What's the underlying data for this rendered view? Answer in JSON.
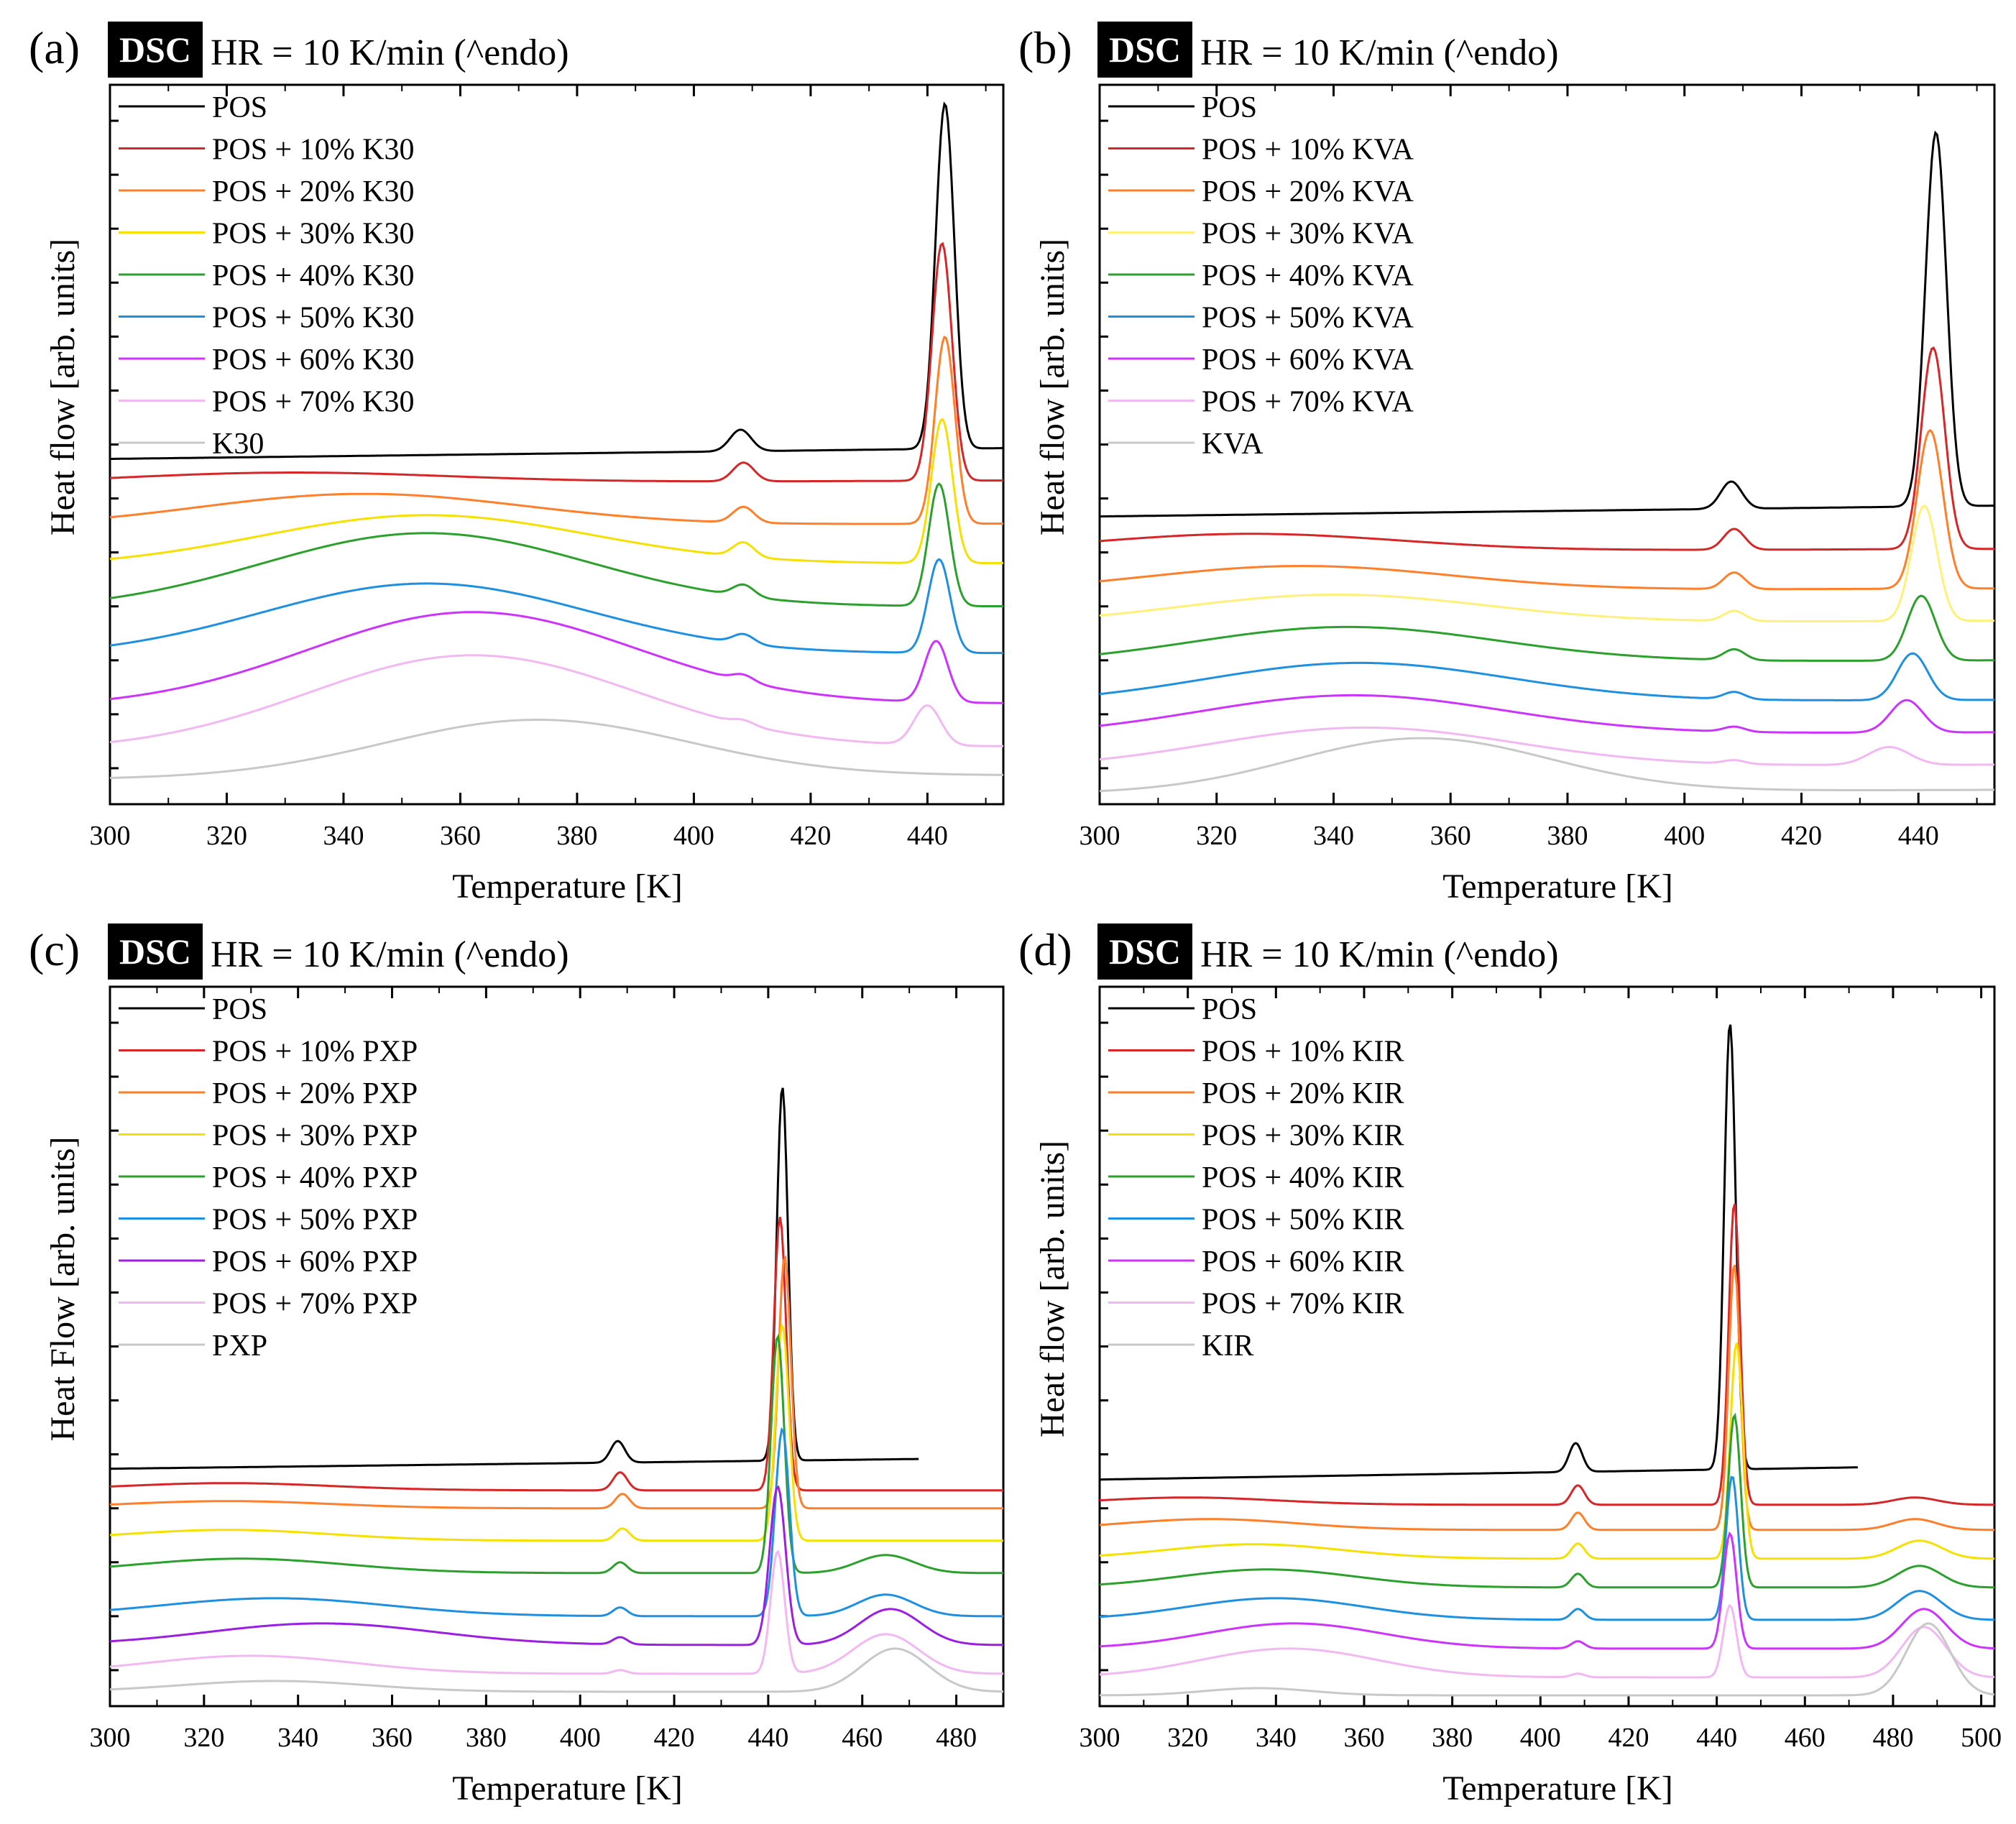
{
  "figure": {
    "hr_text": "HR = 10 K/min (^endo)",
    "badge_text": "DSC"
  },
  "chart_data": [
    {
      "type": "line",
      "panel_label": "(a)",
      "badge": "DSC",
      "title": "HR = 10 K/min (^endo)",
      "xlabel": "Temperature [K]",
      "ylabel": "Heat flow [arb. units]",
      "xlim": [
        300,
        453
      ],
      "xticks": [
        300,
        320,
        340,
        360,
        380,
        400,
        420,
        440
      ],
      "ylim": [
        0,
        100
      ],
      "grid": false,
      "legend_position": "top-left",
      "series": [
        {
          "name": "POS",
          "color": "#000000",
          "baseline": 48.0,
          "hump": {
            "c": 345,
            "w": 40,
            "a": 0.0
          },
          "peaks": [
            {
              "c": 408,
              "w": 1.8,
              "a": 3.0
            },
            {
              "c": 443,
              "w": 1.6,
              "a": 48.0
            }
          ],
          "trend": 1.5
        },
        {
          "name": "POS + 10% K30",
          "color": "#d62728",
          "baseline": 44.5,
          "hump": {
            "c": 330,
            "w": 28,
            "a": 1.5
          },
          "peaks": [
            {
              "c": 408.5,
              "w": 1.8,
              "a": 2.6
            },
            {
              "c": 442.5,
              "w": 1.7,
              "a": 33.0
            }
          ],
          "trend": 0.5
        },
        {
          "name": "POS + 20% K30",
          "color": "#ff7f2a",
          "baseline": 38.5,
          "hump": {
            "c": 343,
            "w": 28,
            "a": 4.5
          },
          "peaks": [
            {
              "c": 408.5,
              "w": 1.8,
              "a": 2.2
            },
            {
              "c": 443,
              "w": 1.7,
              "a": 26.0
            }
          ],
          "trend": 0.5
        },
        {
          "name": "POS + 30% K30",
          "color": "#f5e000",
          "baseline": 33.0,
          "hump": {
            "c": 354,
            "w": 28,
            "a": 7.0
          },
          "peaks": [
            {
              "c": 408.5,
              "w": 1.8,
              "a": 2.0
            },
            {
              "c": 442.5,
              "w": 1.8,
              "a": 20.0
            }
          ],
          "trend": 0.5
        },
        {
          "name": "POS + 40% K30",
          "color": "#2ca02c",
          "baseline": 27.0,
          "hump": {
            "c": 354,
            "w": 28,
            "a": 10.5
          },
          "peaks": [
            {
              "c": 408.5,
              "w": 1.8,
              "a": 1.6
            },
            {
              "c": 442,
              "w": 1.8,
              "a": 17.0
            }
          ],
          "trend": 0.5
        },
        {
          "name": "POS + 50% K30",
          "color": "#1f8fe0",
          "baseline": 20.5,
          "hump": {
            "c": 354,
            "w": 28,
            "a": 10.0
          },
          "peaks": [
            {
              "c": 408.5,
              "w": 1.8,
              "a": 1.3
            },
            {
              "c": 442,
              "w": 1.9,
              "a": 13.0
            }
          ],
          "trend": 0.5
        },
        {
          "name": "POS + 60% K30",
          "color": "#cc33ff",
          "baseline": 13.5,
          "hump": {
            "c": 362,
            "w": 28,
            "a": 13.0
          },
          "peaks": [
            {
              "c": 408.5,
              "w": 1.8,
              "a": 0.9
            },
            {
              "c": 441.5,
              "w": 2.0,
              "a": 8.5
            }
          ],
          "trend": 0.5
        },
        {
          "name": "POS + 70% K30",
          "color": "#f2b8f2",
          "baseline": 7.5,
          "hump": {
            "c": 362,
            "w": 28,
            "a": 13.0
          },
          "peaks": [
            {
              "c": 408.5,
              "w": 1.8,
              "a": 0.6
            },
            {
              "c": 440,
              "w": 2.3,
              "a": 5.5
            }
          ],
          "trend": 0.5
        },
        {
          "name": "K30",
          "color": "#c8c8c8",
          "baseline": 3.5,
          "hump": {
            "c": 373,
            "w": 26,
            "a": 8.0
          },
          "peaks": [],
          "trend": 0.5
        }
      ]
    },
    {
      "type": "line",
      "panel_label": "(b)",
      "badge": "DSC",
      "title": "HR = 10 K/min (^endo)",
      "xlabel": "Temperature [K]",
      "ylabel": "Heat flow [arb. units]",
      "xlim": [
        300,
        453
      ],
      "xticks": [
        300,
        320,
        340,
        360,
        380,
        400,
        420,
        440
      ],
      "ylim": [
        0,
        100
      ],
      "grid": false,
      "legend_position": "top-left",
      "series": [
        {
          "name": "POS",
          "color": "#000000",
          "baseline": 40.0,
          "hump": {
            "c": 340,
            "w": 40,
            "a": 0.0
          },
          "peaks": [
            {
              "c": 408,
              "w": 1.8,
              "a": 3.8
            },
            {
              "c": 443,
              "w": 1.8,
              "a": 52.0
            }
          ],
          "trend": 1.5
        },
        {
          "name": "POS + 10% KVA",
          "color": "#d62728",
          "baseline": 35.0,
          "hump": {
            "c": 325,
            "w": 26,
            "a": 2.5
          },
          "peaks": [
            {
              "c": 408.5,
              "w": 1.8,
              "a": 2.9
            },
            {
              "c": 442.5,
              "w": 2.0,
              "a": 28.0
            }
          ],
          "trend": 0.5
        },
        {
          "name": "POS + 20% KVA",
          "color": "#ff7f2a",
          "baseline": 29.5,
          "hump": {
            "c": 334,
            "w": 26,
            "a": 3.5
          },
          "peaks": [
            {
              "c": 408.5,
              "w": 1.8,
              "a": 2.3
            },
            {
              "c": 442,
              "w": 2.2,
              "a": 22.0
            }
          ],
          "trend": 0.5
        },
        {
          "name": "POS + 30% KVA",
          "color": "#fff07a",
          "baseline": 25.0,
          "hump": {
            "c": 340,
            "w": 26,
            "a": 4.0
          },
          "peaks": [
            {
              "c": 408.5,
              "w": 1.8,
              "a": 1.4
            },
            {
              "c": 441,
              "w": 2.2,
              "a": 16.0
            }
          ],
          "trend": 0.5
        },
        {
          "name": "POS + 40% KVA",
          "color": "#2ca02c",
          "baseline": 19.5,
          "hump": {
            "c": 342,
            "w": 26,
            "a": 5.0
          },
          "peaks": [
            {
              "c": 408.5,
              "w": 1.8,
              "a": 1.5
            },
            {
              "c": 440.5,
              "w": 2.4,
              "a": 9.0
            }
          ],
          "trend": 0.5
        },
        {
          "name": "POS + 50% KVA",
          "color": "#1f8fe0",
          "baseline": 14.0,
          "hump": {
            "c": 344,
            "w": 26,
            "a": 5.5
          },
          "peaks": [
            {
              "c": 408.5,
              "w": 1.8,
              "a": 1.0
            },
            {
              "c": 439,
              "w": 2.6,
              "a": 6.5
            }
          ],
          "trend": 0.5
        },
        {
          "name": "POS + 60% KVA",
          "color": "#cc33ff",
          "baseline": 9.5,
          "hump": {
            "c": 343,
            "w": 26,
            "a": 5.5
          },
          "peaks": [
            {
              "c": 408.5,
              "w": 1.8,
              "a": 0.7
            },
            {
              "c": 438,
              "w": 2.8,
              "a": 4.5
            }
          ],
          "trend": 0.5
        },
        {
          "name": "POS + 70% KVA",
          "color": "#f2b8f2",
          "baseline": 5.0,
          "hump": {
            "c": 345,
            "w": 26,
            "a": 5.5
          },
          "peaks": [
            {
              "c": 408.5,
              "w": 1.8,
              "a": 0.5
            },
            {
              "c": 435,
              "w": 3.5,
              "a": 2.5
            }
          ],
          "trend": 0.5
        },
        {
          "name": "KVA",
          "color": "#c8c8c8",
          "baseline": 1.5,
          "hump": {
            "c": 355,
            "w": 22,
            "a": 7.5
          },
          "peaks": [],
          "trend": 0.5
        }
      ]
    },
    {
      "type": "line",
      "panel_label": "(c)",
      "badge": "DSC",
      "title": "HR = 10 K/min (^endo)",
      "xlabel": "Temperature [K]",
      "ylabel": "Heat Flow [arb. units]",
      "xlim": [
        300,
        490
      ],
      "xticks": [
        300,
        320,
        340,
        360,
        380,
        400,
        420,
        440,
        460,
        480
      ],
      "ylim": [
        0,
        100
      ],
      "grid": false,
      "legend_position": "top-left",
      "series": [
        {
          "name": "POS",
          "color": "#000000",
          "baseline": 33.0,
          "hump": {
            "c": 340,
            "w": 40,
            "a": 0.0
          },
          "peaks": [
            {
              "c": 408,
              "w": 1.5,
              "a": 3.0
            },
            {
              "c": 443,
              "w": 1.2,
              "a": 52.0
            }
          ],
          "trend": 1.5,
          "xend": 472
        },
        {
          "name": "POS + 10% PXP",
          "color": "#d62728",
          "baseline": 30.0,
          "hump": {
            "c": 325,
            "w": 22,
            "a": 1.0
          },
          "peaks": [
            {
              "c": 408.5,
              "w": 1.5,
              "a": 2.5
            },
            {
              "c": 442.5,
              "w": 1.3,
              "a": 38.0
            }
          ],
          "trend": 0.0
        },
        {
          "name": "POS + 20% PXP",
          "color": "#ff7f2a",
          "baseline": 27.5,
          "hump": {
            "c": 325,
            "w": 22,
            "a": 1.0
          },
          "peaks": [
            {
              "c": 409,
              "w": 1.5,
              "a": 2.0
            },
            {
              "c": 443.5,
              "w": 1.3,
              "a": 35.0
            }
          ],
          "trend": 0.0
        },
        {
          "name": "POS + 30% PXP",
          "color": "#f5e000",
          "baseline": 23.0,
          "hump": {
            "c": 325,
            "w": 22,
            "a": 1.5
          },
          "peaks": [
            {
              "c": 409,
              "w": 1.5,
              "a": 1.7
            },
            {
              "c": 443,
              "w": 1.4,
              "a": 30.0
            }
          ],
          "trend": 0.0
        },
        {
          "name": "POS + 40% PXP",
          "color": "#2ca02c",
          "baseline": 18.5,
          "hump": {
            "c": 328,
            "w": 22,
            "a": 2.0
          },
          "peaks": [
            {
              "c": 408.5,
              "w": 1.5,
              "a": 1.5
            },
            {
              "c": 442,
              "w": 1.4,
              "a": 33.0
            },
            {
              "c": 465,
              "w": 6.0,
              "a": 2.5
            }
          ],
          "trend": 0.0
        },
        {
          "name": "POS + 50% PXP",
          "color": "#1f8fe0",
          "baseline": 12.5,
          "hump": {
            "c": 335,
            "w": 24,
            "a": 2.5
          },
          "peaks": [
            {
              "c": 408.5,
              "w": 1.5,
              "a": 1.2
            },
            {
              "c": 443,
              "w": 1.5,
              "a": 26.0
            },
            {
              "c": 465,
              "w": 6.0,
              "a": 3.0
            }
          ],
          "trend": 0.0
        },
        {
          "name": "POS + 60% PXP",
          "color": "#9a1fe0",
          "baseline": 8.5,
          "hump": {
            "c": 345,
            "w": 24,
            "a": 3.0
          },
          "peaks": [
            {
              "c": 408.5,
              "w": 1.5,
              "a": 1.0
            },
            {
              "c": 442,
              "w": 1.7,
              "a": 22.0
            },
            {
              "c": 466,
              "w": 6.5,
              "a": 5.0
            }
          ],
          "trend": 0.0
        },
        {
          "name": "POS + 70% PXP",
          "color": "#f2b8f2",
          "baseline": 4.5,
          "hump": {
            "c": 330,
            "w": 22,
            "a": 2.5
          },
          "peaks": [
            {
              "c": 408.5,
              "w": 1.5,
              "a": 0.5
            },
            {
              "c": 442,
              "w": 1.5,
              "a": 17.0
            },
            {
              "c": 465,
              "w": 7.0,
              "a": 5.5
            }
          ],
          "trend": 0.0
        },
        {
          "name": "PXP",
          "color": "#c8c8c8",
          "baseline": 2.0,
          "hump": {
            "c": 335,
            "w": 20,
            "a": 1.5
          },
          "peaks": [
            {
              "c": 467,
              "w": 7.0,
              "a": 6.0
            }
          ],
          "trend": 0.0
        }
      ]
    },
    {
      "type": "line",
      "panel_label": "(d)",
      "badge": "DSC",
      "title": "HR = 10 K/min (^endo)",
      "xlabel": "Temperature [K]",
      "ylabel": "Heat flow [arb. units]",
      "xlim": [
        300,
        503
      ],
      "xticks": [
        300,
        320,
        340,
        360,
        380,
        400,
        420,
        440,
        460,
        480,
        500
      ],
      "ylim": [
        0,
        100
      ],
      "grid": false,
      "legend_position": "top-left",
      "series": [
        {
          "name": "POS",
          "color": "#000000",
          "baseline": 31.5,
          "hump": {
            "c": 340,
            "w": 40,
            "a": 0.0
          },
          "peaks": [
            {
              "c": 408,
              "w": 1.5,
              "a": 4.0
            },
            {
              "c": 443,
              "w": 1.3,
              "a": 62.0
            }
          ],
          "trend": 2.0,
          "xend": 472
        },
        {
          "name": "POS + 10% KIR",
          "color": "#d62728",
          "baseline": 28.0,
          "hump": {
            "c": 320,
            "w": 20,
            "a": 1.0
          },
          "peaks": [
            {
              "c": 408.5,
              "w": 1.5,
              "a": 2.7
            },
            {
              "c": 444,
              "w": 1.3,
              "a": 42.0
            },
            {
              "c": 485,
              "w": 5.0,
              "a": 1.0
            }
          ],
          "trend": 0.0
        },
        {
          "name": "POS + 20% KIR",
          "color": "#ff7f2a",
          "baseline": 24.5,
          "hump": {
            "c": 325,
            "w": 20,
            "a": 1.5
          },
          "peaks": [
            {
              "c": 408.5,
              "w": 1.5,
              "a": 2.4
            },
            {
              "c": 444,
              "w": 1.3,
              "a": 37.0
            },
            {
              "c": 485,
              "w": 5.0,
              "a": 1.5
            }
          ],
          "trend": 0.0
        },
        {
          "name": "POS + 30% KIR",
          "color": "#f5e000",
          "baseline": 20.5,
          "hump": {
            "c": 335,
            "w": 20,
            "a": 2.0
          },
          "peaks": [
            {
              "c": 408.5,
              "w": 1.5,
              "a": 2.1
            },
            {
              "c": 444.5,
              "w": 1.4,
              "a": 30.0
            },
            {
              "c": 486,
              "w": 5.0,
              "a": 2.5
            }
          ],
          "trend": 0.0
        },
        {
          "name": "POS + 40% KIR",
          "color": "#2ca02c",
          "baseline": 16.5,
          "hump": {
            "c": 338,
            "w": 20,
            "a": 2.5
          },
          "peaks": [
            {
              "c": 408.5,
              "w": 1.5,
              "a": 1.9
            },
            {
              "c": 444,
              "w": 1.4,
              "a": 24.0
            },
            {
              "c": 486,
              "w": 5.0,
              "a": 3.0
            }
          ],
          "trend": 0.0
        },
        {
          "name": "POS + 50% KIR",
          "color": "#1f8fe0",
          "baseline": 12.0,
          "hump": {
            "c": 340,
            "w": 20,
            "a": 3.0
          },
          "peaks": [
            {
              "c": 408.5,
              "w": 1.5,
              "a": 1.5
            },
            {
              "c": 443.5,
              "w": 1.4,
              "a": 20.0
            },
            {
              "c": 486,
              "w": 5.0,
              "a": 4.0
            }
          ],
          "trend": 0.0
        },
        {
          "name": "POS + 60% KIR",
          "color": "#cc33ff",
          "baseline": 8.0,
          "hump": {
            "c": 344,
            "w": 20,
            "a": 3.5
          },
          "peaks": [
            {
              "c": 408.5,
              "w": 1.5,
              "a": 1.0
            },
            {
              "c": 443,
              "w": 1.5,
              "a": 16.0
            },
            {
              "c": 487,
              "w": 5.0,
              "a": 5.5
            }
          ],
          "trend": 0.0
        },
        {
          "name": "POS + 70% KIR",
          "color": "#f2b8f2",
          "baseline": 4.0,
          "hump": {
            "c": 343,
            "w": 20,
            "a": 4.0
          },
          "peaks": [
            {
              "c": 408.5,
              "w": 1.5,
              "a": 0.5
            },
            {
              "c": 443,
              "w": 1.5,
              "a": 10.0
            },
            {
              "c": 487,
              "w": 5.0,
              "a": 7.0
            }
          ],
          "trend": 0.0
        },
        {
          "name": "KIR",
          "color": "#c8c8c8",
          "baseline": 1.5,
          "hump": {
            "c": 336,
            "w": 12,
            "a": 1.0
          },
          "peaks": [
            {
              "c": 488,
              "w": 5.0,
              "a": 10.0
            }
          ],
          "trend": 0.0
        }
      ]
    }
  ]
}
